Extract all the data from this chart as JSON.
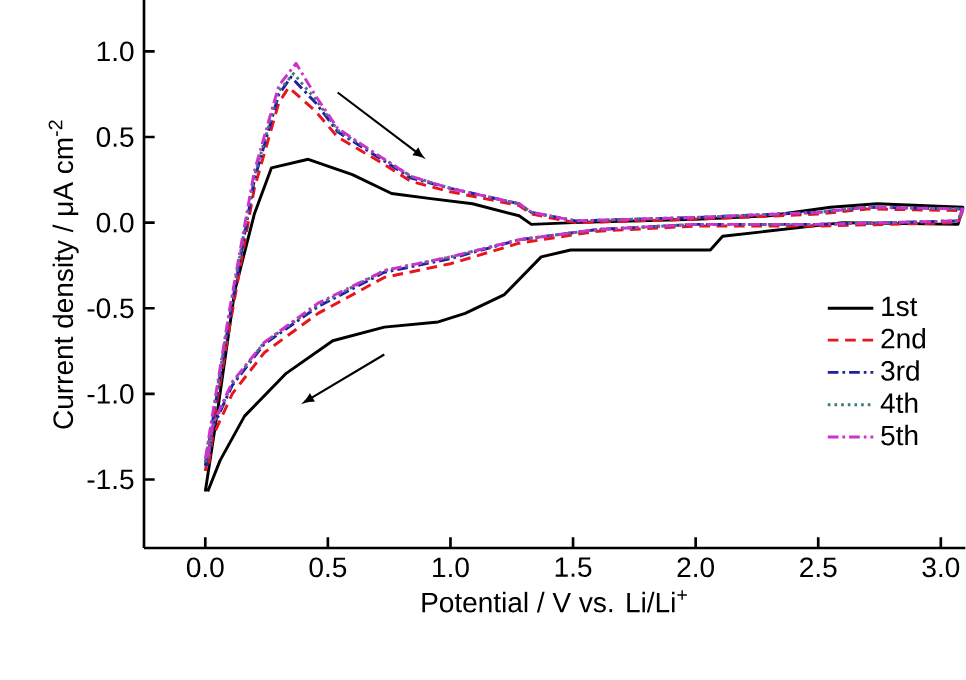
{
  "chart_data": {
    "type": "line",
    "xlabel": "Potential / V vs. Li/Li$^{+}$",
    "ylabel": "Current density / μA cm$^{-2}$",
    "xlim": [
      -0.25,
      3.1
    ],
    "ylim": [
      -1.9,
      1.3
    ],
    "xticks": [
      {
        "value": 0,
        "label": "0.0"
      },
      0.5,
      {
        "value": 1,
        "label": "1.0"
      },
      1.5,
      {
        "value": 2,
        "label": "2.0"
      },
      2.5,
      {
        "value": 3,
        "label": "3.0"
      }
    ],
    "yticks": [
      -1.5,
      {
        "value": -1,
        "label": "-1.0"
      },
      -0.5,
      {
        "value": 0,
        "label": "0.0"
      },
      0.5,
      {
        "value": 1,
        "label": "1.0"
      }
    ],
    "legend": "bottom right",
    "grid": false,
    "marker": "none",
    "series": [
      {
        "name": "1st",
        "color": "#000000",
        "line_style": "solid",
        "x": [
          0,
          0.05,
          0.12,
          0.2,
          0.27,
          0.42,
          0.6,
          0.76,
          0.92,
          1.09,
          1.28,
          1.33,
          1.5,
          2.0,
          2.3,
          2.55,
          2.74,
          3.09,
          3.07,
          2.6,
          2.11,
          2.06,
          1.49,
          1.37,
          1.22,
          1.06,
          0.95,
          0.73,
          0.52,
          0.33,
          0.16,
          0.06,
          0.01
        ],
        "values": [
          -1.57,
          -1.1,
          -0.4,
          0.05,
          0.32,
          0.37,
          0.28,
          0.17,
          0.14,
          0.11,
          0.04,
          -0.01,
          0.0,
          0.02,
          0.04,
          0.09,
          0.11,
          0.09,
          -0.01,
          0.0,
          -0.08,
          -0.16,
          -0.16,
          -0.2,
          -0.42,
          -0.53,
          -0.58,
          -0.61,
          -0.69,
          -0.88,
          -1.13,
          -1.39,
          -1.57
        ]
      },
      {
        "name": "2nd",
        "color": "#e8141e",
        "line_style": "dashed",
        "x": [
          0,
          0.1,
          0.2,
          0.3,
          0.34,
          0.45,
          0.54,
          0.73,
          0.84,
          1.0,
          1.28,
          1.33,
          1.51,
          2.0,
          2.5,
          2.7,
          3.09,
          3.07,
          2.5,
          2.0,
          1.6,
          1.28,
          1.0,
          0.73,
          0.46,
          0.24,
          0.11,
          0.03,
          0.01
        ],
        "values": [
          -1.45,
          -0.6,
          0.2,
          0.7,
          0.79,
          0.65,
          0.5,
          0.34,
          0.24,
          0.18,
          0.1,
          0.05,
          0.0,
          0.02,
          0.05,
          0.08,
          0.07,
          0.0,
          -0.02,
          -0.02,
          -0.05,
          -0.12,
          -0.24,
          -0.32,
          -0.53,
          -0.76,
          -1.0,
          -1.25,
          -1.45
        ]
      },
      {
        "name": "3rd",
        "color": "#1f1fa0",
        "line_style": "dash-dot",
        "x": [
          0,
          0.1,
          0.2,
          0.3,
          0.35,
          0.45,
          0.54,
          0.73,
          0.84,
          1.0,
          1.28,
          1.33,
          1.51,
          2.0,
          2.5,
          2.7,
          3.09,
          3.07,
          2.5,
          2.0,
          1.6,
          1.28,
          1.0,
          0.73,
          0.46,
          0.24,
          0.11,
          0.03,
          0.01
        ],
        "values": [
          -1.42,
          -0.55,
          0.25,
          0.75,
          0.85,
          0.7,
          0.53,
          0.36,
          0.26,
          0.2,
          0.11,
          0.06,
          0.01,
          0.03,
          0.06,
          0.09,
          0.08,
          0.01,
          -0.01,
          -0.01,
          -0.04,
          -0.1,
          -0.21,
          -0.29,
          -0.49,
          -0.71,
          -0.95,
          -1.2,
          -1.42
        ]
      },
      {
        "name": "4th",
        "color": "#3d7a7a",
        "line_style": "dotted",
        "x": [
          0,
          0.1,
          0.2,
          0.3,
          0.36,
          0.45,
          0.54,
          0.73,
          0.84,
          1.0,
          1.28,
          1.33,
          1.51,
          2.0,
          2.5,
          2.7,
          3.09,
          3.07,
          2.5,
          2.0,
          1.6,
          1.28,
          1.0,
          0.73,
          0.46,
          0.24,
          0.11,
          0.03,
          0.01
        ],
        "values": [
          -1.4,
          -0.52,
          0.27,
          0.77,
          0.87,
          0.72,
          0.54,
          0.37,
          0.27,
          0.2,
          0.11,
          0.06,
          0.01,
          0.03,
          0.06,
          0.09,
          0.08,
          0.01,
          -0.01,
          -0.01,
          -0.04,
          -0.1,
          -0.2,
          -0.28,
          -0.48,
          -0.7,
          -0.94,
          -1.19,
          -1.4
        ]
      },
      {
        "name": "5th",
        "color": "#cc33cc",
        "line_style": "dash-dot",
        "x": [
          0,
          0.1,
          0.2,
          0.3,
          0.37,
          0.45,
          0.54,
          0.73,
          0.84,
          1.0,
          1.28,
          1.33,
          1.51,
          2.0,
          2.5,
          2.7,
          3.09,
          3.07,
          2.5,
          2.0,
          1.6,
          1.28,
          1.0,
          0.73,
          0.46,
          0.24,
          0.11,
          0.03,
          0.01
        ],
        "values": [
          -1.38,
          -0.5,
          0.3,
          0.8,
          0.93,
          0.74,
          0.55,
          0.37,
          0.27,
          0.2,
          0.11,
          0.06,
          0.01,
          0.03,
          0.06,
          0.09,
          0.08,
          0.01,
          -0.01,
          -0.01,
          -0.04,
          -0.1,
          -0.2,
          -0.28,
          -0.47,
          -0.7,
          -0.93,
          -1.18,
          -1.38
        ]
      }
    ]
  }
}
